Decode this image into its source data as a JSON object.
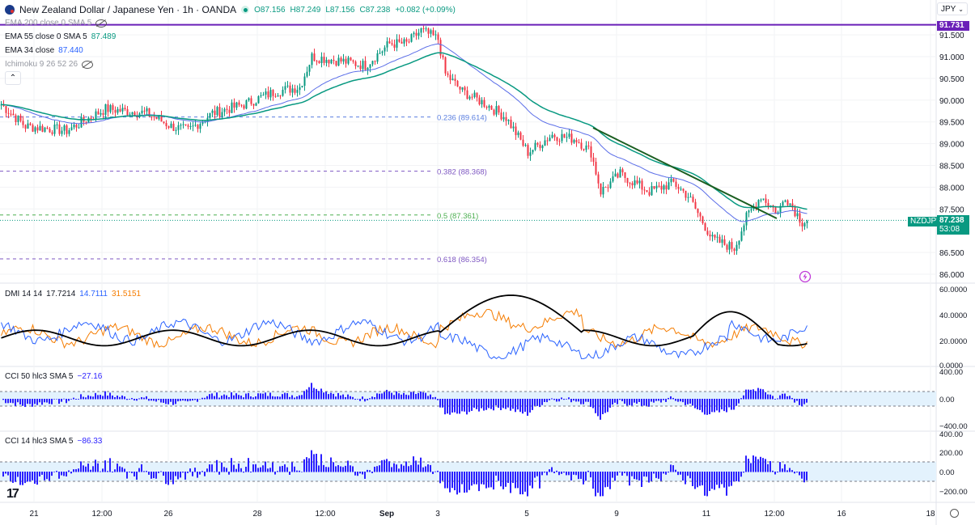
{
  "header": {
    "title": "New Zealand Dollar / Japanese Yen · 1h · OANDA",
    "open": "O87.156",
    "high": "H87.249",
    "low": "L87.156",
    "close": "C87.238",
    "change": "+0.082 (+0.09%)"
  },
  "indicators": {
    "ema200": "EMA 200 close 0 SMA 5",
    "ema55": "EMA 55 close 0 SMA 5",
    "ema55_val": "87.489",
    "ema34": "EMA 34 close",
    "ema34_val": "87.440",
    "ichimoku": "Ichimoku 9 26 52 26",
    "dmi": "DMI 14 14",
    "dmi_adx": "17.7214",
    "dmi_plus": "14.7111",
    "dmi_minus": "31.5151",
    "cci50": "CCI 50 hlc3 SMA 5",
    "cci50_val": "−27.16",
    "cci14": "CCI 14 hlc3 SMA 5",
    "cci14_val": "−86.33"
  },
  "currency": "JPY",
  "price_tags": {
    "ema200_level": "91.731",
    "symbol": "NZDJPY",
    "last": "87.238",
    "countdown": "53:08"
  },
  "fib": [
    {
      "label": "0.236 (89.614)",
      "price": 89.614,
      "color": "#5b7fe0"
    },
    {
      "label": "0.382 (88.368)",
      "price": 88.368,
      "color": "#7e57c2"
    },
    {
      "label": "0.5 (87.361)",
      "price": 87.361,
      "color": "#4caf50"
    },
    {
      "label": "0.618 (86.354)",
      "price": 86.354,
      "color": "#7e57c2"
    }
  ],
  "colors": {
    "up": "#089981",
    "down": "#f23645",
    "ema55": "#089981",
    "ema34": "#5b6ee8",
    "ema200": "#6a1fb8",
    "trend": "#1b5e20",
    "adx": "#000000",
    "plus": "#2962ff",
    "minus": "#f57c00",
    "cci": "#2a1fff"
  },
  "chart_data": {
    "type": "candlestick",
    "price_axis": {
      "ticks": [
        "91.500",
        "91.000",
        "90.500",
        "90.000",
        "89.500",
        "89.000",
        "88.500",
        "88.000",
        "87.500",
        "86.500",
        "86.000"
      ],
      "range": [
        85.9,
        91.9
      ]
    },
    "time_axis": [
      "21",
      "12:00",
      "26",
      "28",
      "12:00",
      "Sep",
      "3",
      "5",
      "9",
      "11",
      "12:00",
      "16",
      "18"
    ],
    "close_keypoints": [
      [
        0,
        89.9
      ],
      [
        10,
        89.4
      ],
      [
        27,
        89.3
      ],
      [
        43,
        89.8
      ],
      [
        60,
        89.7
      ],
      [
        70,
        89.4
      ],
      [
        77,
        89.3
      ],
      [
        87,
        89.7
      ],
      [
        100,
        89.9
      ],
      [
        113,
        90.2
      ],
      [
        123,
        90.3
      ],
      [
        128,
        91.0
      ],
      [
        140,
        90.9
      ],
      [
        150,
        90.8
      ],
      [
        160,
        91.3
      ],
      [
        167,
        91.3
      ],
      [
        173,
        91.6
      ],
      [
        180,
        91.4
      ],
      [
        183,
        90.6
      ],
      [
        190,
        90.2
      ],
      [
        200,
        89.9
      ],
      [
        208,
        89.6
      ],
      [
        217,
        88.8
      ],
      [
        227,
        89.2
      ],
      [
        237,
        89.1
      ],
      [
        243,
        88.8
      ],
      [
        247,
        87.9
      ],
      [
        255,
        88.3
      ],
      [
        267,
        87.9
      ],
      [
        277,
        88.1
      ],
      [
        283,
        87.8
      ],
      [
        293,
        86.8
      ],
      [
        302,
        86.6
      ],
      [
        307,
        87.3
      ],
      [
        313,
        87.8
      ],
      [
        320,
        87.4
      ],
      [
        323,
        87.8
      ],
      [
        330,
        87.2
      ],
      [
        332,
        87.24
      ]
    ],
    "dmi_axis": [
      "60.0000",
      "40.0000",
      "20.0000",
      "0.0000"
    ],
    "cci50_axis": [
      "400.00",
      "0.00",
      "−400.00"
    ],
    "cci14_axis": [
      "400.00",
      "200.00",
      "0.00",
      "−200.00"
    ]
  }
}
